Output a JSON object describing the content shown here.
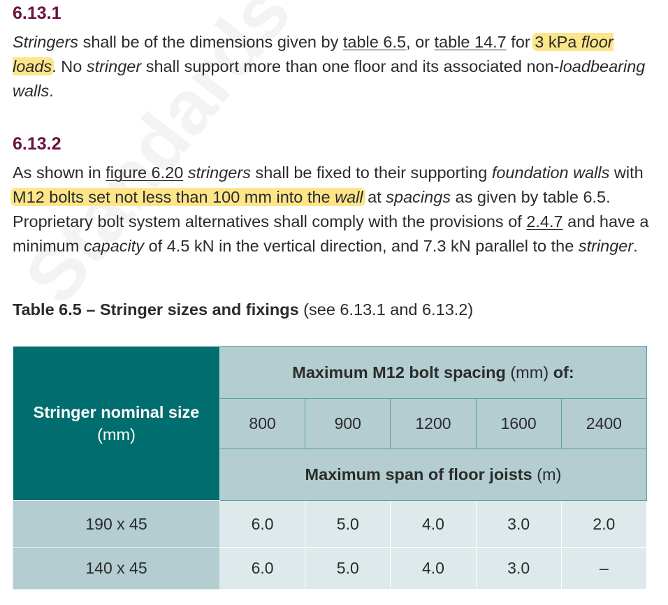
{
  "watermark": "Standards New Zealand",
  "clause_1": {
    "number": "6.13.1",
    "p1": "Stringers",
    "p2": " shall be of the dimensions given by ",
    "link_a": "table 6.5",
    "p3": ", or ",
    "link_b": "table 14.7",
    "p4": " for ",
    "hl_a": "3 kPa ",
    "hl_b": "floor loads",
    "p5": ". No ",
    "p6": "stringer",
    "p7": " shall support more than one floor and its associated non-",
    "p8": "loadbearing walls",
    "p9": "."
  },
  "clause_2": {
    "number": "6.13.2",
    "p1": "As shown in ",
    "link_a": "figure 6.20",
    "p2": " ",
    "p3": "stringers",
    "p4": " shall be fixed to their supporting ",
    "p5": "foundation walls",
    "p6": " with ",
    "hl_a": "M12 bolts set not less than 100 mm into the ",
    "hl_b": "wall",
    "p7": " at ",
    "p8": "spacings",
    "p9": " as given by table 6.5. Proprietary bolt system alternatives shall comply with the provisions of ",
    "link_b": "2.4.7",
    "p10": " and have a minimum ",
    "p11": "capacity",
    "p12": " of 4.5 kN in the vertical direction, and 7.3 kN parallel to the ",
    "p13": "stringer",
    "p14": "."
  },
  "table": {
    "caption_bold": "Table 6.5 – Stringer sizes and fixings",
    "caption_rest": " (see 6.13.1 and 6.13.2)",
    "corner_bold": "Stringer nominal size",
    "corner_unit": " (mm)",
    "header_top_bold": "Maximum M12 bolt spacing",
    "header_top_unit": " (mm) ",
    "header_top_tail": "of:",
    "spacings": [
      "800",
      "900",
      "1200",
      "1600",
      "2400"
    ],
    "header_bottom_bold": "Maximum span of floor joists",
    "header_bottom_unit": " (m)",
    "rows": [
      {
        "size": "190 x 45",
        "values": [
          "6.0",
          "5.0",
          "4.0",
          "3.0",
          "2.0"
        ]
      },
      {
        "size": "140 x 45",
        "values": [
          "6.0",
          "5.0",
          "4.0",
          "3.0",
          "–"
        ]
      }
    ]
  }
}
